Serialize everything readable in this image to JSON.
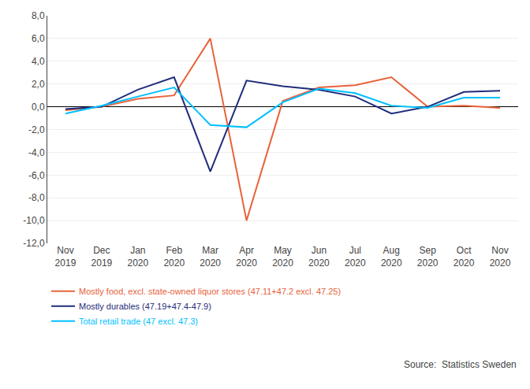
{
  "chart_data": {
    "type": "line",
    "categories": [
      "Nov\n2019",
      "Dec\n2019",
      "Jan\n2020",
      "Feb\n2020",
      "Mar\n2020",
      "Apr\n2020",
      "May\n2020",
      "Jun\n2020",
      "Jul\n2020",
      "Aug\n2020",
      "Sep\n2020",
      "Oct\n2020",
      "Nov\n2020"
    ],
    "series": [
      {
        "name": "Mostly food, excl. state-owned liquor stores (47.11+47.2 excl. 47.25)",
        "color": "#E8623A",
        "values": [
          -0.3,
          0.0,
          0.7,
          1.0,
          6.0,
          -10.0,
          0.5,
          1.7,
          1.9,
          2.6,
          0.0,
          0.1,
          -0.1
        ]
      },
      {
        "name": "Mostly durables (47.19+47.4-47.9)",
        "color": "#1F2D7B",
        "values": [
          -0.2,
          0.0,
          1.5,
          2.6,
          -5.7,
          2.3,
          1.8,
          1.5,
          0.9,
          -0.6,
          0.0,
          1.3,
          1.4
        ]
      },
      {
        "name": "Total retail trade (47 excl. 47.3)",
        "color": "#00BFFF",
        "values": [
          -0.6,
          0.1,
          0.9,
          1.7,
          -1.6,
          -1.8,
          0.4,
          1.6,
          1.2,
          0.1,
          -0.1,
          0.8,
          0.8
        ]
      }
    ],
    "ylim": [
      -12.0,
      8.0
    ],
    "yticks": [
      {
        "value": -12.0,
        "label": "-12,0"
      },
      {
        "value": -10.0,
        "label": "-10,0"
      },
      {
        "value": -8.0,
        "label": "-8,0"
      },
      {
        "value": -6.0,
        "label": "-6,0"
      },
      {
        "value": -4.0,
        "label": "-4,0"
      },
      {
        "value": -2.0,
        "label": "-2,0"
      },
      {
        "value": 0.0,
        "label": "0,0"
      },
      {
        "value": 2.0,
        "label": "2,0"
      },
      {
        "value": 4.0,
        "label": "4,0"
      },
      {
        "value": 6.0,
        "label": "6,0"
      },
      {
        "value": 8.0,
        "label": "8,0"
      }
    ],
    "annotations": [
      "Source:  Statistics Sweden"
    ],
    "grid": true,
    "legend": "lower left"
  }
}
